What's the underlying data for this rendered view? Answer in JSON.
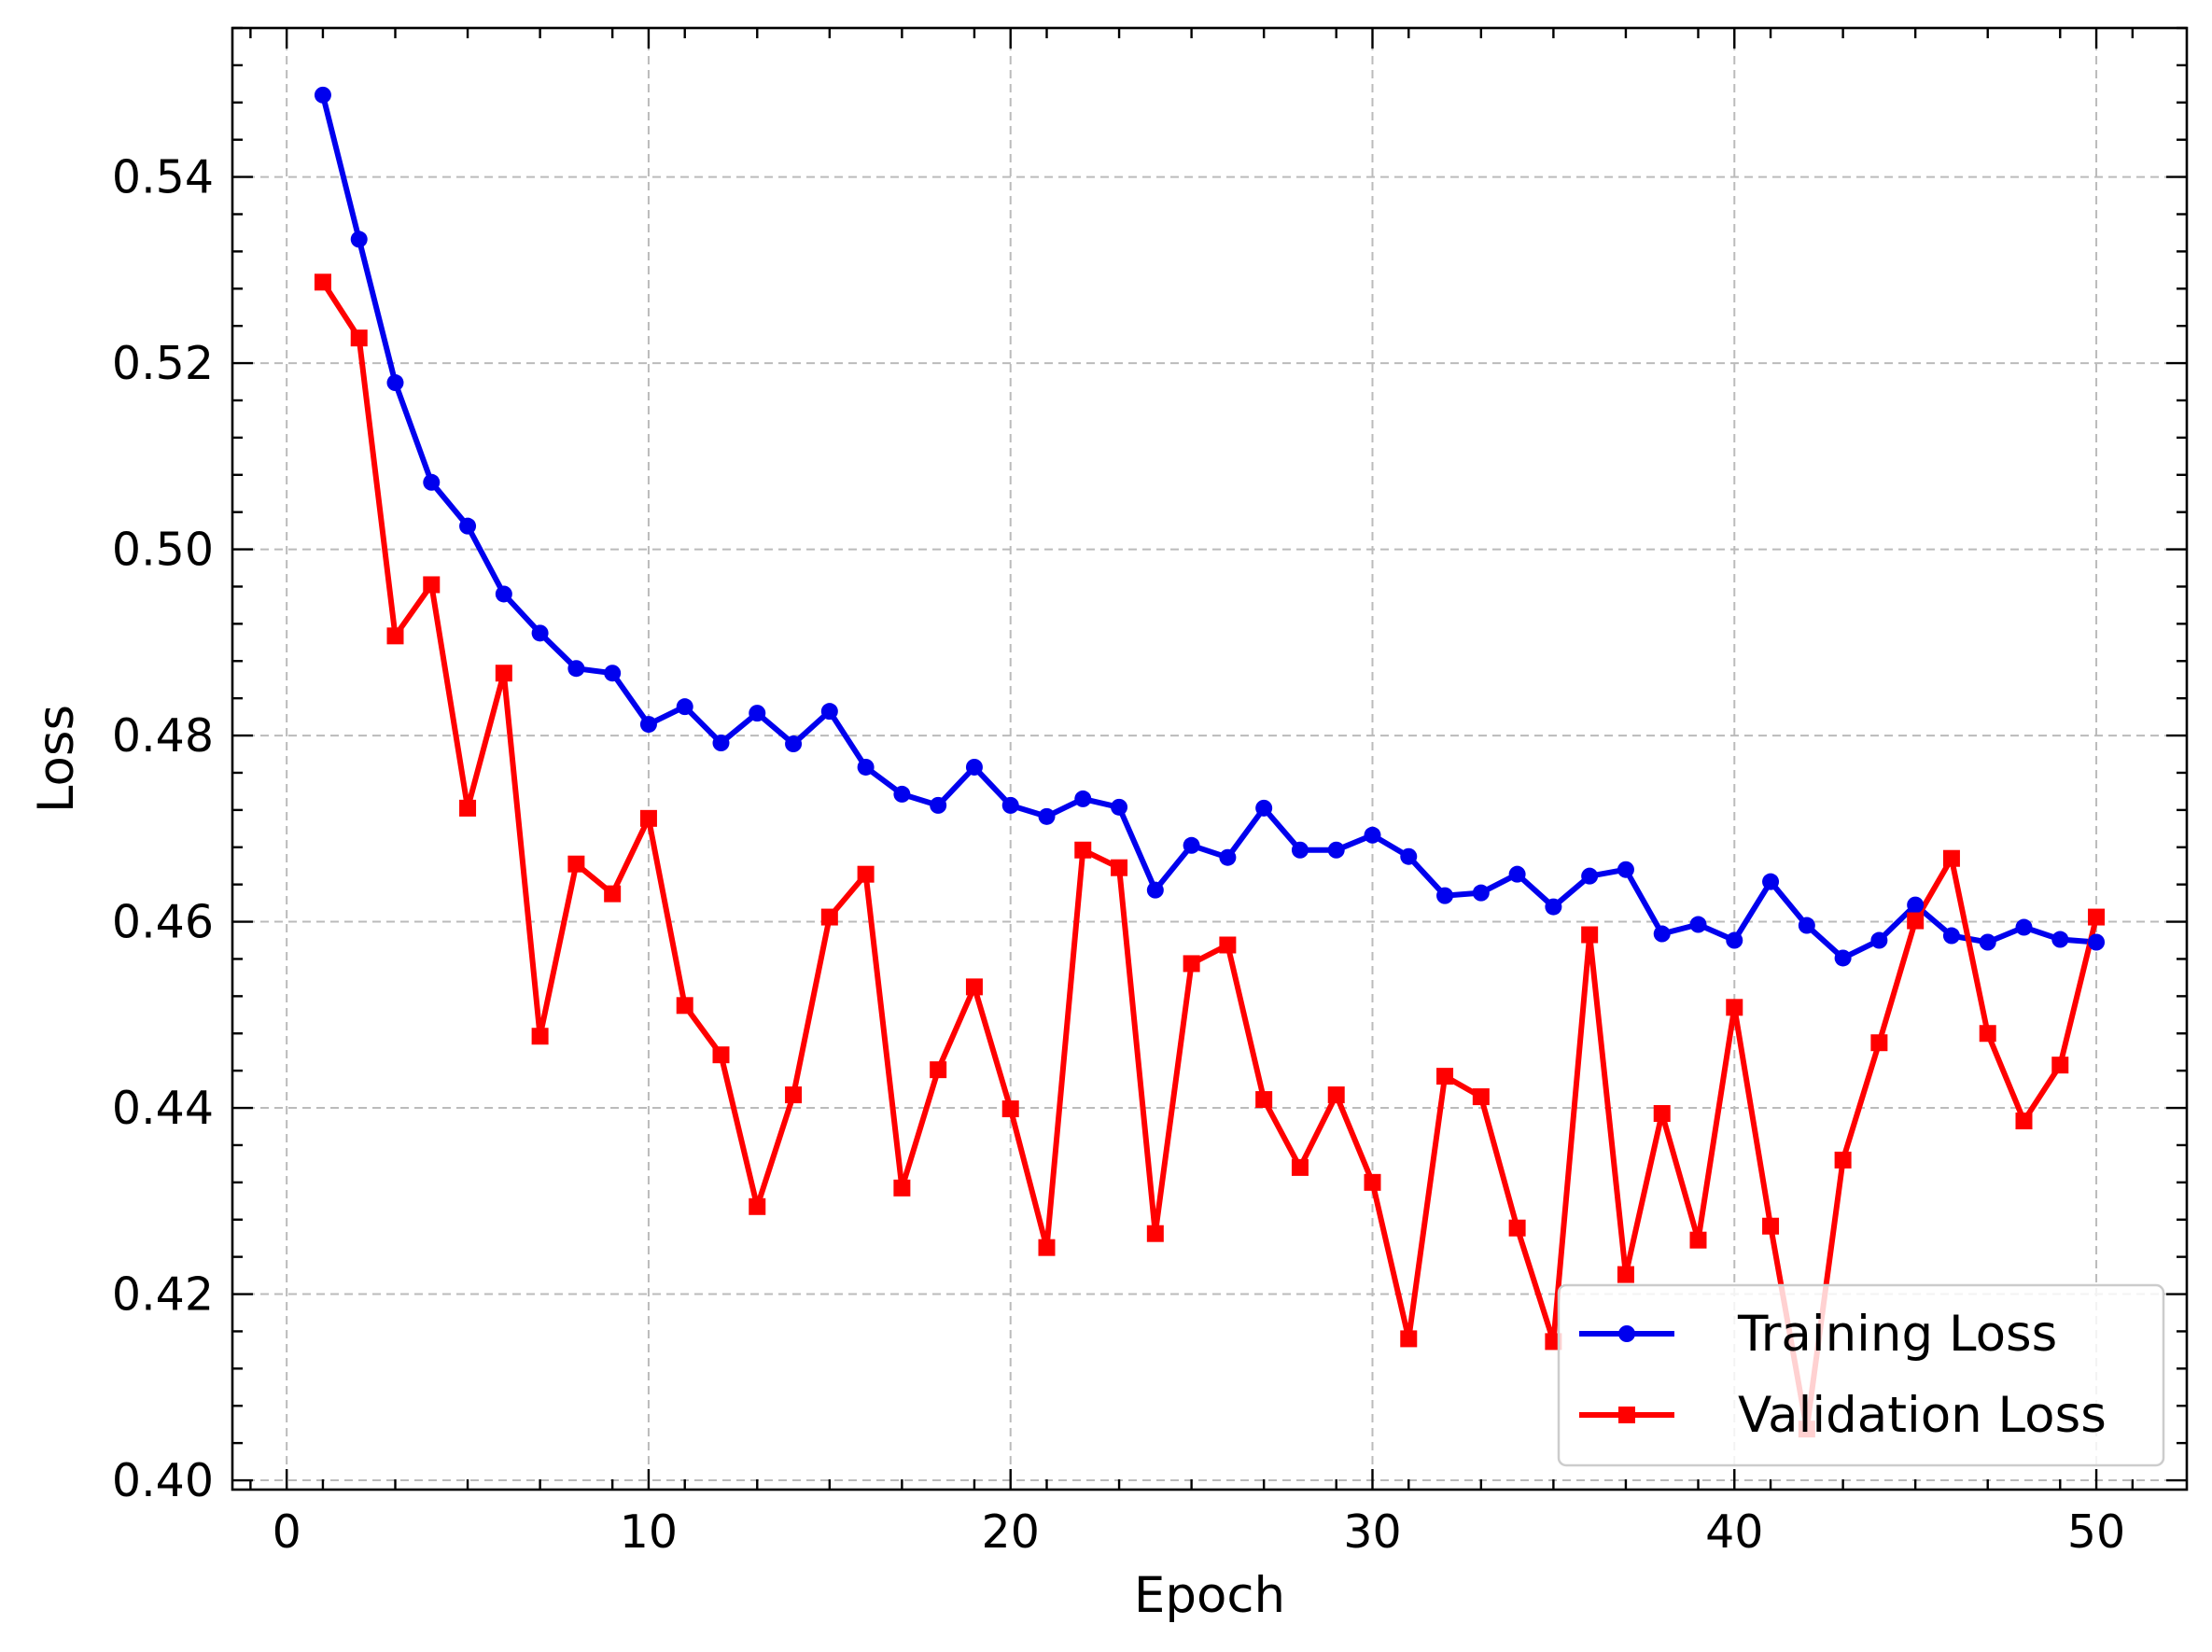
{
  "chart_data": {
    "type": "line",
    "title": "",
    "xlabel": "Epoch",
    "ylabel": "Loss",
    "xlim": [
      -1.5,
      52.5
    ],
    "ylim": [
      0.399,
      0.556
    ],
    "x_ticks": [
      0,
      10,
      20,
      30,
      40,
      50
    ],
    "x_tick_labels": [
      "0",
      "10",
      "20",
      "30",
      "40",
      "50"
    ],
    "y_ticks": [
      0.4,
      0.42,
      0.44,
      0.46,
      0.48,
      0.5,
      0.52,
      0.54
    ],
    "y_tick_labels": [
      "0.40",
      "0.42",
      "0.44",
      "0.46",
      "0.48",
      "0.50",
      "0.52",
      "0.54"
    ],
    "grid": true,
    "legend_position": "lower-right",
    "x": [
      1,
      2,
      3,
      4,
      5,
      6,
      7,
      8,
      9,
      10,
      11,
      12,
      13,
      14,
      15,
      16,
      17,
      18,
      19,
      20,
      21,
      22,
      23,
      24,
      25,
      26,
      27,
      28,
      29,
      30,
      31,
      32,
      33,
      34,
      35,
      36,
      37,
      38,
      39,
      40,
      41,
      42,
      43,
      44,
      45,
      46,
      47,
      48,
      49,
      50
    ],
    "series": [
      {
        "name": "Training Loss",
        "color": "#0000ee",
        "marker": "circle",
        "values": [
          0.5488,
          0.5333,
          0.5179,
          0.5072,
          0.5025,
          0.4952,
          0.491,
          0.4872,
          0.4867,
          0.4812,
          0.4831,
          0.4792,
          0.4824,
          0.4791,
          0.4826,
          0.4766,
          0.4737,
          0.4725,
          0.4766,
          0.4725,
          0.4713,
          0.4732,
          0.4723,
          0.4634,
          0.4682,
          0.4669,
          0.4722,
          0.4677,
          0.4677,
          0.4693,
          0.467,
          0.4628,
          0.4631,
          0.4651,
          0.4616,
          0.4649,
          0.4656,
          0.4587,
          0.4597,
          0.458,
          0.4643,
          0.4596,
          0.4561,
          0.458,
          0.4618,
          0.4585,
          0.4578,
          0.4594,
          0.4581,
          0.4578
        ]
      },
      {
        "name": "Validation Loss",
        "color": "#ff0000",
        "marker": "square",
        "values": [
          0.5287,
          0.5227,
          0.4907,
          0.4962,
          0.4722,
          0.4867,
          0.4477,
          0.4662,
          0.463,
          0.4711,
          0.451,
          0.4457,
          0.4294,
          0.4414,
          0.4605,
          0.4651,
          0.4314,
          0.4441,
          0.453,
          0.4399,
          0.425,
          0.4677,
          0.4658,
          0.4265,
          0.4555,
          0.4575,
          0.4409,
          0.4336,
          0.4414,
          0.432,
          0.4152,
          0.4434,
          0.4412,
          0.4271,
          0.4149,
          0.4586,
          0.4221,
          0.4394,
          0.4258,
          0.4508,
          0.4273,
          0.4055,
          0.4344,
          0.447,
          0.4601,
          0.4668,
          0.448,
          0.4386,
          0.4446,
          0.4605
        ]
      }
    ]
  }
}
